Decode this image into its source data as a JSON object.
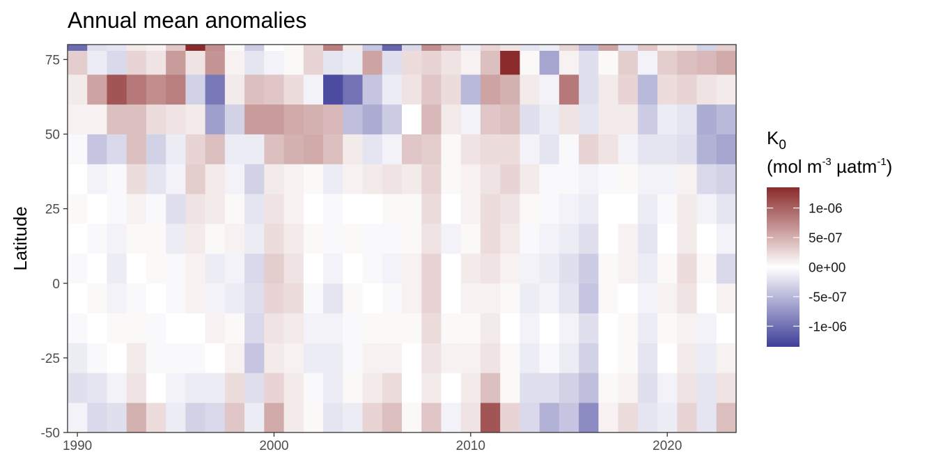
{
  "chart_data": {
    "type": "heatmap",
    "title": "Annual mean anomalies",
    "xlabel": "",
    "ylabel": "Latitude",
    "x_ticks": [
      1990,
      2000,
      2010,
      2020
    ],
    "y_ticks": [
      75,
      50,
      25,
      0,
      -25,
      -50
    ],
    "xlim": [
      1989.5,
      2023.5
    ],
    "ylim": [
      -50,
      80
    ],
    "grid": false,
    "legend": {
      "position": "right",
      "title": "K",
      "title_subscript": "0",
      "unit_parts": [
        "(mol m",
        "-3",
        " µatm",
        "-1",
        ")"
      ],
      "breaks": [
        1e-06,
        5e-07,
        0,
        -5e-07,
        -1e-06
      ],
      "break_labels": [
        "1e-06",
        "5e-07",
        "0e+00",
        "-5e-07",
        "-1e-06"
      ],
      "limits": [
        -1.35e-06,
        1.35e-06
      ],
      "colors": {
        "low": "#3f3f9a",
        "mid": "#ffffff",
        "high": "#8b2a2a"
      }
    },
    "years": [
      1990,
      1991,
      1992,
      1993,
      1994,
      1995,
      1996,
      1997,
      1998,
      1999,
      2000,
      2001,
      2002,
      2003,
      2004,
      2005,
      2006,
      2007,
      2008,
      2009,
      2010,
      2011,
      2012,
      2013,
      2014,
      2015,
      2016,
      2017,
      2018,
      2019,
      2020,
      2021,
      2022,
      2023
    ],
    "lat_bands": [
      -50,
      -40,
      -30,
      -20,
      -10,
      0,
      10,
      20,
      30,
      40,
      50,
      60,
      70,
      78
    ],
    "z": [
      [
        -0.2,
        -0.5,
        -0.3,
        -0.1,
        0.0,
        -0.1,
        0.0,
        0.1,
        0.0,
        -0.1,
        0.2,
        0.3,
        0.7,
        -2.3
      ],
      [
        -0.6,
        -0.4,
        -0.1,
        0.0,
        0.1,
        0.0,
        -0.1,
        0.0,
        -0.2,
        -0.9,
        0.2,
        1.3,
        -0.3,
        -0.5
      ],
      [
        -0.5,
        -0.2,
        0.0,
        0.1,
        -0.2,
        -0.3,
        -0.2,
        -0.1,
        -0.1,
        -0.6,
        0.9,
        2.4,
        -0.6,
        -0.4
      ],
      [
        1.1,
        0.4,
        0.3,
        0.1,
        -0.1,
        0.0,
        0.1,
        0.2,
        0.5,
        0.9,
        0.9,
        1.9,
        0.6,
        0.3
      ],
      [
        0.5,
        0.0,
        -0.1,
        -0.1,
        0.0,
        0.1,
        0.1,
        -0.1,
        -0.4,
        -0.7,
        0.5,
        1.6,
        0.4,
        0.2
      ],
      [
        -0.3,
        -0.2,
        -0.1,
        0.0,
        -0.1,
        -0.1,
        -0.3,
        -0.5,
        -0.2,
        -0.3,
        0.4,
        1.8,
        1.4,
        0.8
      ],
      [
        -0.7,
        -0.3,
        -0.1,
        0.0,
        0.2,
        0.2,
        0.3,
        0.4,
        0.7,
        0.6,
        0.3,
        -0.7,
        0.4,
        3.4
      ],
      [
        -0.6,
        -0.3,
        0.0,
        0.2,
        -0.2,
        -0.3,
        0.1,
        0.3,
        0.3,
        0.9,
        -1.5,
        -2.1,
        1.5,
        1.6
      ],
      [
        0.8,
        0.5,
        0.2,
        0.1,
        -0.3,
        -0.2,
        0.2,
        0.1,
        -0.2,
        -0.3,
        -0.7,
        0.3,
        0.2,
        0.1
      ],
      [
        -0.3,
        -0.5,
        -0.9,
        -0.6,
        -0.5,
        -0.6,
        -0.3,
        -0.4,
        -0.7,
        -0.3,
        1.4,
        0.9,
        -0.4,
        -0.8
      ],
      [
        1.2,
        0.6,
        0.3,
        0.4,
        0.6,
        0.7,
        0.5,
        0.4,
        0.3,
        0.9,
        1.4,
        0.8,
        -0.2,
        0.0
      ],
      [
        0.3,
        0.3,
        0.2,
        0.3,
        0.5,
        0.4,
        0.3,
        0.2,
        0.2,
        1.1,
        1.2,
        0.5,
        0.1,
        0.1
      ],
      [
        0.1,
        -0.1,
        -0.3,
        -0.2,
        -0.1,
        0.0,
        0.1,
        0.0,
        0.1,
        1.2,
        1.1,
        -0.2,
        0.6,
        0.6
      ],
      [
        -0.4,
        -0.3,
        -0.3,
        -0.2,
        -0.4,
        -0.2,
        -0.1,
        -0.1,
        -0.3,
        0.9,
        1.0,
        -2.8,
        -0.4,
        1.8
      ],
      [
        -0.3,
        0.1,
        -0.1,
        -0.1,
        0.1,
        0.0,
        0.1,
        0.0,
        0.2,
        0.3,
        -1.0,
        -2.2,
        -0.3,
        0.3
      ],
      [
        0.6,
        0.3,
        0.2,
        0.1,
        0.0,
        -0.1,
        -0.1,
        0.0,
        0.3,
        -0.4,
        -1.3,
        -0.9,
        1.3,
        -0.9
      ],
      [
        0.9,
        0.5,
        0.2,
        0.1,
        -0.1,
        -0.2,
        -0.1,
        0.1,
        0.4,
        -0.2,
        -0.8,
        -0.3,
        -0.5,
        -2.4
      ],
      [
        0.1,
        0.0,
        0.0,
        0.1,
        0.2,
        0.2,
        0.1,
        0.1,
        0.3,
        0.8,
        0.0,
        0.4,
        0.5,
        -0.6
      ],
      [
        0.8,
        0.3,
        0.4,
        0.5,
        0.6,
        0.6,
        0.4,
        0.5,
        0.6,
        0.7,
        1.0,
        0.8,
        0.6,
        1.6
      ],
      [
        -0.2,
        0.0,
        0.2,
        0.1,
        0.0,
        0.0,
        -0.2,
        0.0,
        0.1,
        0.1,
        0.3,
        0.5,
        0.4,
        0.9
      ],
      [
        0.4,
        0.3,
        0.2,
        0.1,
        0.2,
        0.3,
        0.1,
        0.2,
        0.2,
        0.4,
        -0.2,
        -1.1,
        0.2,
        -0.3
      ],
      [
        2.4,
        0.9,
        0.4,
        0.3,
        0.2,
        0.4,
        0.5,
        0.5,
        0.4,
        0.5,
        0.8,
        1.3,
        0.9,
        0.6
      ],
      [
        0.6,
        0.1,
        0.1,
        0.0,
        0.1,
        0.2,
        0.3,
        0.4,
        0.6,
        0.5,
        0.9,
        1.1,
        3.1,
        0.4
      ],
      [
        -0.6,
        -0.5,
        -0.3,
        -0.2,
        -0.3,
        -0.2,
        -0.1,
        0.1,
        0.3,
        -0.2,
        -0.5,
        0.3,
        0.1,
        -0.4
      ],
      [
        -1.2,
        -0.5,
        -0.1,
        0.0,
        -0.2,
        -0.3,
        -0.2,
        -0.1,
        -0.1,
        -0.4,
        -0.3,
        -0.2,
        -1.4,
        -0.3
      ],
      [
        -0.9,
        -0.7,
        -0.3,
        -0.2,
        -0.4,
        -0.5,
        -0.3,
        -0.2,
        -0.1,
        -0.1,
        0.4,
        1.9,
        0.2,
        0.6
      ],
      [
        -1.8,
        -1.0,
        -0.7,
        -0.5,
        -0.9,
        -0.8,
        -0.5,
        -0.3,
        -0.2,
        0.6,
        -0.4,
        -0.5,
        -0.5,
        -1.1
      ],
      [
        0.2,
        0.1,
        0.0,
        0.0,
        0.1,
        0.1,
        0.0,
        0.0,
        -0.1,
        0.4,
        0.3,
        0.3,
        0.1,
        1.3
      ],
      [
        0.5,
        0.2,
        0.1,
        0.1,
        0.0,
        0.2,
        0.2,
        0.0,
        0.1,
        -0.2,
        0.3,
        0.6,
        0.7,
        -0.4
      ],
      [
        -0.4,
        -0.5,
        -0.4,
        -0.3,
        -0.2,
        -0.3,
        -0.4,
        -0.3,
        -0.2,
        -0.4,
        -0.8,
        -1.1,
        -0.2,
        0.8
      ],
      [
        -0.3,
        -0.2,
        0.0,
        0.1,
        0.2,
        0.1,
        0.0,
        -0.1,
        -0.2,
        -0.4,
        -0.3,
        0.5,
        0.7,
        0.3
      ],
      [
        0.6,
        0.4,
        0.3,
        0.2,
        0.4,
        0.5,
        0.3,
        0.3,
        0.2,
        -0.5,
        -0.4,
        0.6,
        0.9,
        0.4
      ],
      [
        -0.4,
        -0.4,
        -0.3,
        -0.2,
        0.0,
        0.1,
        0.0,
        -0.2,
        -0.6,
        -1.2,
        -1.3,
        0.4,
        1.0,
        -0.7
      ],
      [
        0.9,
        0.4,
        0.2,
        0.0,
        0.2,
        -0.6,
        -0.2,
        -0.4,
        -0.7,
        -1.4,
        -1.1,
        0.3,
        1.2,
        0.7
      ]
    ]
  }
}
